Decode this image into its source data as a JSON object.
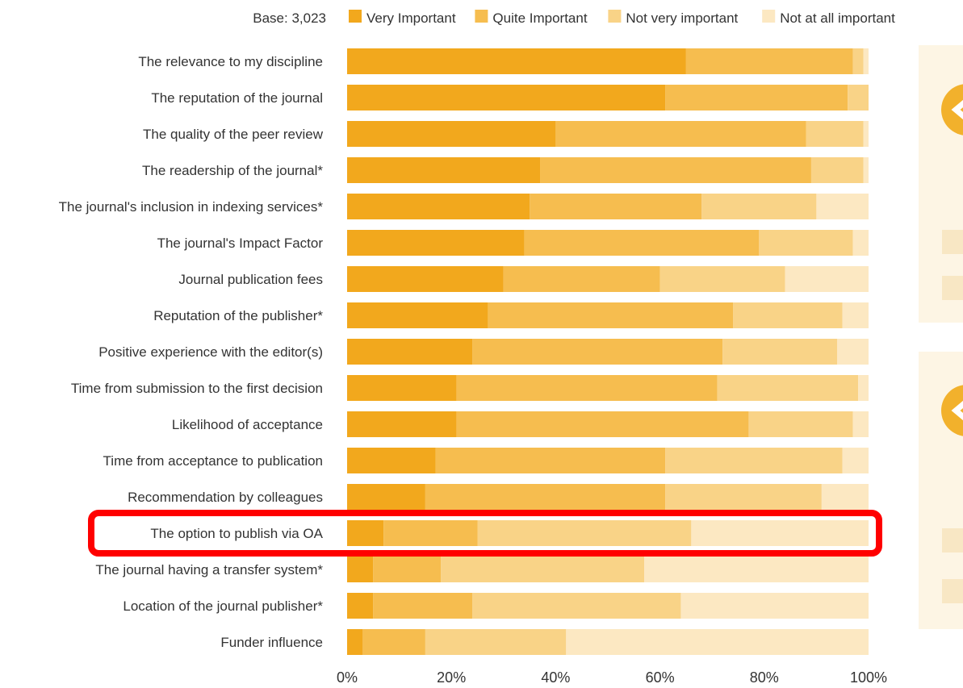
{
  "chart_data": {
    "type": "bar",
    "orientation": "horizontal",
    "stacked": true,
    "base_label": "Base: 3,023",
    "categories": [
      "The relevance to my discipline",
      "The reputation of the journal",
      "The quality of the peer review",
      "The readership of the journal*",
      "The journal's inclusion in indexing services*",
      "The journal's Impact Factor",
      "Journal publication fees",
      "Reputation of the publisher*",
      "Positive experience with the editor(s)",
      "Time from submission to the first decision",
      "Likelihood of acceptance",
      "Time from acceptance to publication",
      "Recommendation by colleagues",
      "The option to publish via OA",
      "The journal having a transfer system*",
      "Location of the journal publisher*",
      "Funder influence"
    ],
    "series": [
      {
        "name": "Very Important",
        "color": "#f2a81d",
        "values": [
          65,
          61,
          40,
          37,
          35,
          34,
          30,
          27,
          24,
          21,
          21,
          17,
          15,
          7,
          5,
          5,
          3
        ]
      },
      {
        "name": "Quite Important",
        "color": "#f6bd4f",
        "values": [
          32,
          35,
          48,
          52,
          33,
          45,
          30,
          47,
          48,
          50,
          56,
          44,
          46,
          18,
          13,
          19,
          12
        ]
      },
      {
        "name": "Not very important",
        "color": "#f9d387",
        "values": [
          2,
          4,
          11,
          10,
          22,
          18,
          24,
          21,
          22,
          27,
          20,
          34,
          30,
          41,
          39,
          40,
          27
        ]
      },
      {
        "name": "Not at all important",
        "color": "#fce8c2",
        "values": [
          1,
          0,
          1,
          1,
          10,
          3,
          16,
          5,
          6,
          2,
          3,
          5,
          9,
          34,
          43,
          36,
          58
        ]
      }
    ],
    "xaxis": {
      "ticks": [
        "0%",
        "20%",
        "40%",
        "60%",
        "80%",
        "100%"
      ],
      "range": [
        0,
        100
      ]
    },
    "legend_position": "top",
    "highlight": {
      "category": "The option to publish via OA",
      "color": "#ff0000"
    }
  }
}
